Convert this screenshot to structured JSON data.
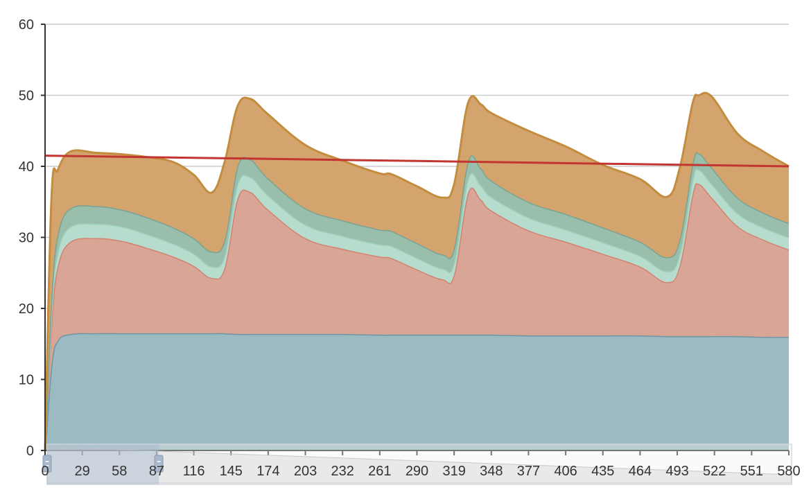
{
  "chart_data": {
    "type": "area",
    "stacked": true,
    "title": "",
    "xlabel": "",
    "ylabel": "",
    "ylim": [
      0,
      60
    ],
    "xlim": [
      0,
      580
    ],
    "y_ticks": [
      0,
      10,
      20,
      30,
      40,
      50,
      60
    ],
    "x_ticks": [
      "0",
      "29",
      "58",
      "87",
      "116",
      "145",
      "174",
      "203",
      "232",
      "261",
      "290",
      "319",
      "348",
      "377",
      "406",
      "435",
      "464",
      "493",
      "522",
      "551",
      "580"
    ],
    "grid": "horizontal",
    "legend": "none",
    "x": [
      0,
      5,
      10,
      20,
      40,
      60,
      80,
      100,
      116,
      130,
      140,
      150,
      160,
      174,
      203,
      232,
      261,
      270,
      290,
      310,
      319,
      330,
      340,
      348,
      377,
      406,
      435,
      464,
      485,
      495,
      505,
      510,
      520,
      540,
      560,
      580
    ],
    "series": [
      {
        "color": "#6f97a3",
        "fill": "#9bbac1",
        "values": [
          0,
          12,
          15.5,
          16.4,
          16.5,
          16.5,
          16.5,
          16.5,
          16.5,
          16.5,
          16.5,
          16.4,
          16.4,
          16.4,
          16.4,
          16.4,
          16.3,
          16.3,
          16.3,
          16.3,
          16.3,
          16.3,
          16.3,
          16.3,
          16.2,
          16.2,
          16.2,
          16.2,
          16.1,
          16.1,
          16.1,
          16.1,
          16.1,
          16.1,
          16.0,
          16.0
        ]
      },
      {
        "color": "#d4826f",
        "fill": "#d8a596",
        "values": [
          0,
          6,
          10.5,
          13.0,
          13.4,
          13.0,
          12.0,
          10.8,
          9.5,
          7.8,
          9.2,
          19.0,
          20.0,
          17.5,
          13.5,
          12.0,
          11.0,
          10.8,
          9.2,
          7.8,
          8.5,
          20.0,
          19.0,
          17.5,
          14.8,
          13.2,
          11.5,
          9.7,
          7.6,
          10.0,
          20.0,
          21.4,
          19.5,
          15.5,
          13.7,
          12.3
        ]
      },
      {
        "color": "#9fd1bf",
        "fill": "#b6dccd",
        "values": [
          0,
          1.5,
          2.0,
          2.1,
          2.0,
          2.0,
          1.9,
          1.8,
          1.7,
          1.6,
          1.7,
          2.0,
          2.1,
          2.0,
          1.9,
          1.8,
          1.7,
          1.7,
          1.6,
          1.5,
          1.6,
          2.0,
          2.0,
          1.9,
          1.8,
          1.7,
          1.6,
          1.5,
          1.5,
          1.6,
          2.0,
          2.0,
          1.9,
          1.8,
          1.7,
          1.7
        ]
      },
      {
        "color": "#7aa393",
        "fill": "#99bfac",
        "values": [
          0,
          2.0,
          2.5,
          2.6,
          2.5,
          2.4,
          2.4,
          2.3,
          2.2,
          2.1,
          2.2,
          2.5,
          2.5,
          2.4,
          2.3,
          2.2,
          2.1,
          2.1,
          2.1,
          2.0,
          2.1,
          2.5,
          2.4,
          2.3,
          2.2,
          2.2,
          2.1,
          2.0,
          2.0,
          2.1,
          2.3,
          2.3,
          2.3,
          2.2,
          2.1,
          2.0
        ]
      },
      {
        "color": "#c38c3e",
        "fill": "#d3a46d",
        "values": [
          0,
          14,
          9.0,
          8.0,
          7.5,
          7.8,
          8.5,
          9.2,
          8.9,
          8.3,
          11.0,
          8.5,
          8.5,
          9.0,
          8.9,
          8.4,
          7.9,
          8.0,
          8.0,
          8.0,
          9.0,
          8.2,
          9.0,
          9.5,
          10.0,
          9.5,
          8.8,
          8.8,
          8.5,
          10.0,
          8.5,
          8.2,
          10.0,
          9.0,
          8.6,
          8.0
        ]
      },
      {
        "type": "line",
        "color": "#c23531",
        "x": [
          0,
          580
        ],
        "values": [
          41.5,
          40.0
        ]
      }
    ],
    "data_zoom": {
      "start_value": 0,
      "end_value": 87
    }
  }
}
